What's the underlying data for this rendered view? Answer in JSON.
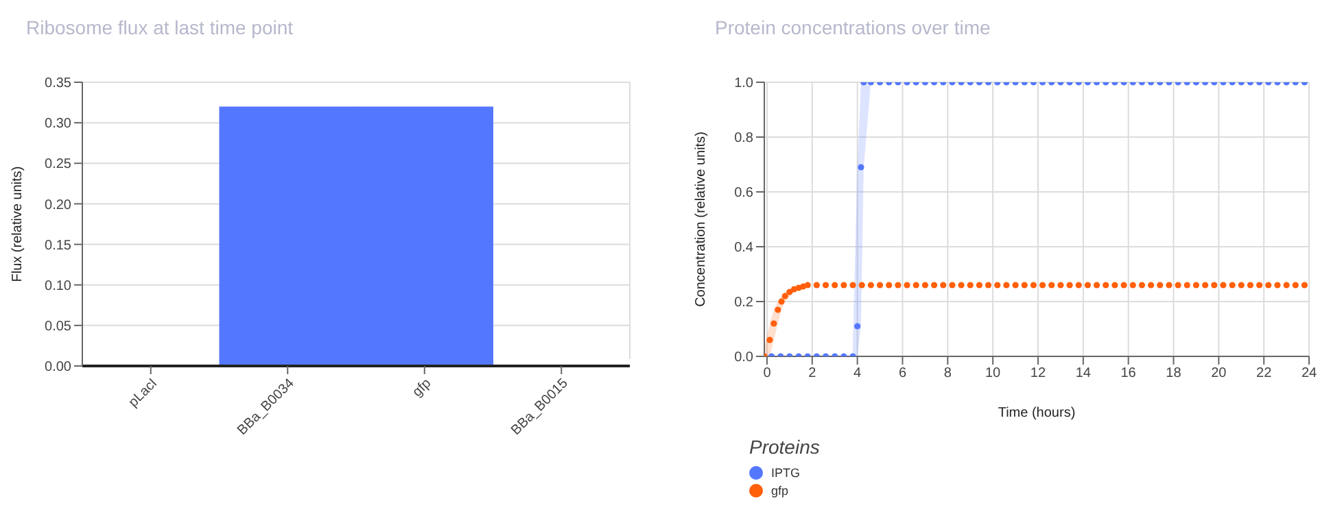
{
  "chart_data": [
    {
      "type": "bar",
      "title": "Ribosome flux at last time point",
      "ylabel": "Flux (relative units)",
      "categories": [
        "pLacI",
        "BBa_B0034",
        "gfp",
        "BBa_B0015"
      ],
      "values": [
        0,
        0.32,
        0.32,
        0
      ],
      "color": "#5477ff",
      "ylim": [
        0,
        0.35
      ],
      "yticks": [
        {
          "value": 0,
          "label": "0.00"
        },
        {
          "value": 0.05,
          "label": "0.05"
        },
        {
          "value": 0.1,
          "label": "0.10"
        },
        {
          "value": 0.15,
          "label": "0.15"
        },
        {
          "value": 0.2,
          "label": "0.20"
        },
        {
          "value": 0.25,
          "label": "0.25"
        },
        {
          "value": 0.3,
          "label": "0.30"
        },
        {
          "value": 0.35,
          "label": "0.35"
        }
      ],
      "grid": "y"
    },
    {
      "type": "scatter",
      "title": "Protein concentrations over time",
      "xlabel": "Time (hours)",
      "ylabel": "Concentration (relative units)",
      "legend_title": "Proteins",
      "legend": "bottom left",
      "marker": "circle",
      "grid": true,
      "xlim": [
        -0.12,
        24
      ],
      "xticks": [
        0,
        2,
        4,
        6,
        8,
        10,
        12,
        14,
        16,
        18,
        20,
        22,
        24
      ],
      "ylim": [
        0,
        1
      ],
      "yticks": [
        {
          "value": 0,
          "label": "0.0"
        },
        {
          "value": 0.2,
          "label": "0.2"
        },
        {
          "value": 0.4,
          "label": "0.4"
        },
        {
          "value": 0.6,
          "label": "0.6"
        },
        {
          "value": 0.8,
          "label": "0.8"
        },
        {
          "value": 1,
          "label": "1.0"
        }
      ],
      "series": [
        {
          "name": "IPTG",
          "color": "#5477ff",
          "x": [
            -0.12,
            0.2,
            0.6,
            1.0,
            1.4,
            1.8,
            2.2,
            2.6,
            3.0,
            3.4,
            3.8,
            4.0,
            4.16,
            4.28,
            4.6,
            5,
            5.4,
            5.8,
            6.2,
            6.6,
            7,
            7.4,
            7.8,
            8.2,
            8.6,
            9,
            9.4,
            9.8,
            10.2,
            10.6,
            11,
            11.4,
            11.8,
            12.2,
            12.6,
            13,
            13.4,
            13.8,
            14.2,
            14.6,
            15,
            15.4,
            15.8,
            16.2,
            16.6,
            17,
            17.4,
            17.8,
            18.2,
            18.6,
            19,
            19.4,
            19.8,
            20.2,
            20.6,
            21,
            21.4,
            21.8,
            22.2,
            22.6,
            23,
            23.4,
            23.8
          ],
          "values": [
            0,
            0,
            0,
            0,
            0,
            0,
            0,
            0,
            0,
            0,
            0,
            0.11,
            0.69,
            1,
            1,
            1,
            1,
            1,
            1,
            1,
            1,
            1,
            1,
            1,
            1,
            1,
            1,
            1,
            1,
            1,
            1,
            1,
            1,
            1,
            1,
            1,
            1,
            1,
            1,
            1,
            1,
            1,
            1,
            1,
            1,
            1,
            1,
            1,
            1,
            1,
            1,
            1,
            1,
            1,
            1,
            1,
            1,
            1,
            1,
            1,
            1,
            1,
            1
          ],
          "lower": [
            null,
            null,
            null,
            null,
            null,
            null,
            null,
            null,
            null,
            null,
            0,
            0,
            0.11,
            0.69,
            1,
            null,
            null,
            null,
            null,
            null,
            null,
            null,
            null,
            null,
            null,
            null,
            null,
            null,
            null,
            null,
            null,
            null,
            null,
            null,
            null,
            null,
            null,
            null,
            null,
            null,
            null,
            null,
            null,
            null,
            null,
            null,
            null,
            null,
            null,
            null,
            null,
            null,
            null,
            null,
            null,
            null,
            null,
            null,
            null,
            null,
            null,
            null,
            null
          ],
          "upper": [
            null,
            null,
            null,
            null,
            null,
            null,
            null,
            null,
            null,
            null,
            0.05,
            0.69,
            1,
            1,
            1,
            null,
            null,
            null,
            null,
            null,
            null,
            null,
            null,
            null,
            null,
            null,
            null,
            null,
            null,
            null,
            null,
            null,
            null,
            null,
            null,
            null,
            null,
            null,
            null,
            null,
            null,
            null,
            null,
            null,
            null,
            null,
            null,
            null,
            null,
            null,
            null,
            null,
            null,
            null,
            null,
            null,
            null,
            null,
            null,
            null,
            null,
            null,
            null
          ]
        },
        {
          "name": "gfp",
          "color": "#ff5f0a",
          "x": [
            -0.12,
            0.12,
            0.3,
            0.48,
            0.64,
            0.8,
            1.0,
            1.2,
            1.4,
            1.6,
            1.8,
            2.2,
            2.6,
            3.0,
            3.4,
            3.8,
            4.2,
            4.6,
            5,
            5.4,
            5.8,
            6.2,
            6.6,
            7,
            7.4,
            7.8,
            8.2,
            8.6,
            9,
            9.4,
            9.8,
            10.2,
            10.6,
            11,
            11.4,
            11.8,
            12.2,
            12.6,
            13,
            13.4,
            13.8,
            14.2,
            14.6,
            15,
            15.4,
            15.8,
            16.2,
            16.6,
            17,
            17.4,
            17.8,
            18.2,
            18.6,
            19,
            19.4,
            19.8,
            20.2,
            20.6,
            21,
            21.4,
            21.8,
            22.2,
            22.6,
            23,
            23.4,
            23.8
          ],
          "values": [
            0,
            0.06,
            0.12,
            0.17,
            0.2,
            0.22,
            0.235,
            0.245,
            0.25,
            0.255,
            0.26,
            0.26,
            0.26,
            0.26,
            0.26,
            0.26,
            0.26,
            0.26,
            0.26,
            0.26,
            0.26,
            0.26,
            0.26,
            0.26,
            0.26,
            0.26,
            0.26,
            0.26,
            0.26,
            0.26,
            0.26,
            0.26,
            0.26,
            0.26,
            0.26,
            0.26,
            0.26,
            0.26,
            0.26,
            0.26,
            0.26,
            0.26,
            0.26,
            0.26,
            0.26,
            0.26,
            0.26,
            0.26,
            0.26,
            0.26,
            0.26,
            0.26,
            0.26,
            0.26,
            0.26,
            0.26,
            0.26,
            0.26,
            0.26,
            0.26,
            0.26,
            0.26,
            0.26,
            0.26,
            0.26,
            0.26
          ],
          "lower": [
            0,
            0,
            0.06,
            0.12,
            0.17,
            0.2,
            0.22,
            0.235,
            0.245,
            0.25,
            0.255,
            null,
            null,
            null,
            null,
            null,
            null,
            null,
            null,
            null,
            null,
            null,
            null,
            null,
            null,
            null,
            null,
            null,
            null,
            null,
            null,
            null,
            null,
            null,
            null,
            null,
            null,
            null,
            null,
            null,
            null,
            null,
            null,
            null,
            null,
            null,
            null,
            null,
            null,
            null,
            null,
            null,
            null,
            null,
            null,
            null,
            null,
            null,
            null,
            null,
            null,
            null,
            null,
            null,
            null,
            null
          ],
          "upper": [
            0.03,
            0.12,
            0.17,
            0.2,
            0.22,
            0.235,
            0.245,
            0.25,
            0.255,
            0.26,
            0.26,
            null,
            null,
            null,
            null,
            null,
            null,
            null,
            null,
            null,
            null,
            null,
            null,
            null,
            null,
            null,
            null,
            null,
            null,
            null,
            null,
            null,
            null,
            null,
            null,
            null,
            null,
            null,
            null,
            null,
            null,
            null,
            null,
            null,
            null,
            null,
            null,
            null,
            null,
            null,
            null,
            null,
            null,
            null,
            null,
            null,
            null,
            null,
            null,
            null,
            null,
            null,
            null,
            null,
            null,
            null
          ]
        }
      ]
    }
  ]
}
